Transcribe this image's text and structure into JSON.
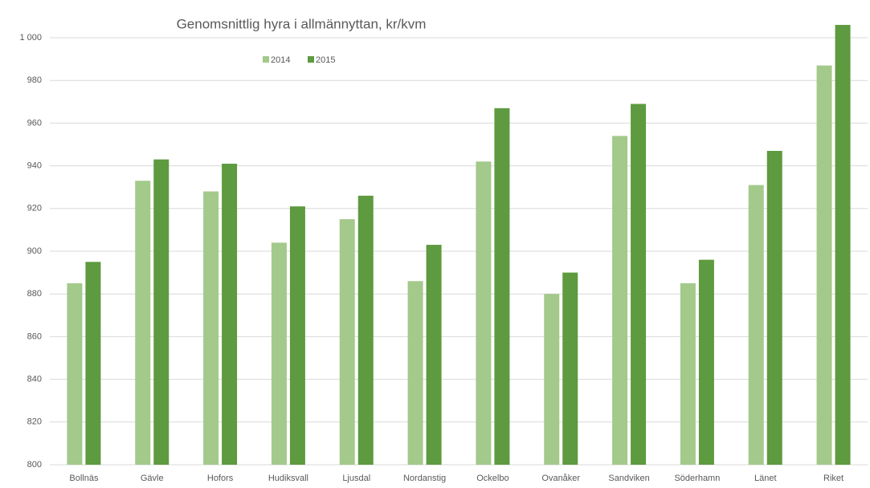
{
  "chart_data": {
    "type": "bar",
    "title": "Genomsnittlig hyra i allmännyttan, kr/kvm",
    "categories": [
      "Bollnäs",
      "Gävle",
      "Hofors",
      "Hudiksvall",
      "Ljusdal",
      "Nordanstig",
      "Ockelbo",
      "Ovanåker",
      "Sandviken",
      "Söderhamn",
      "Länet",
      "Riket"
    ],
    "series": [
      {
        "name": "2014",
        "color": "#a3c98b",
        "values": [
          885,
          933,
          928,
          904,
          915,
          886,
          942,
          880,
          954,
          885,
          931,
          987
        ]
      },
      {
        "name": "2015",
        "color": "#5e9a3f",
        "values": [
          895,
          943,
          941,
          921,
          926,
          903,
          967,
          890,
          969,
          896,
          947,
          1006
        ]
      }
    ],
    "ylim": [
      800,
      1010
    ],
    "yticks": [
      800,
      820,
      840,
      860,
      880,
      900,
      920,
      940,
      960,
      980,
      {
        "value": 1000,
        "label": "1 000"
      }
    ],
    "grid": true,
    "legend": "top"
  }
}
